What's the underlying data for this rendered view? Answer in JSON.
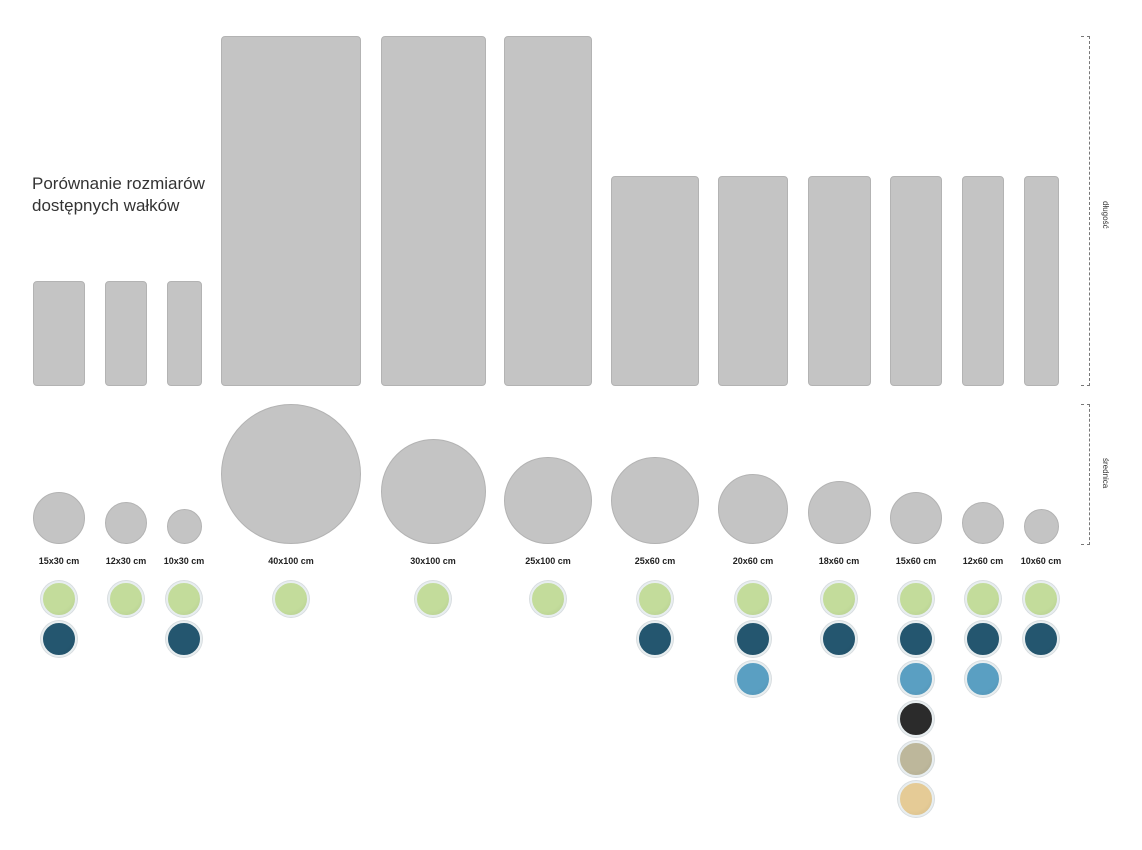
{
  "title": {
    "line1": "Porównanie rozmiarów",
    "line2": "dostępnych wałków"
  },
  "axis_labels": {
    "length": "długość",
    "diameter": "średnica"
  },
  "colors": {
    "shape_fill": "#c4c4c4",
    "swatch_map": {
      "green": "#c3dc9b",
      "navy": "#24566f",
      "blue": "#5a9fc2",
      "black": "#2b2b2b",
      "taupe": "#bdb79b",
      "sand": "#e5cb96"
    }
  },
  "rollers": [
    {
      "label": "15x30 cm",
      "diameter_cm": 15,
      "length_cm": 30,
      "swatches": [
        "green",
        "navy"
      ]
    },
    {
      "label": "12x30 cm",
      "diameter_cm": 12,
      "length_cm": 30,
      "swatches": [
        "green"
      ]
    },
    {
      "label": "10x30 cm",
      "diameter_cm": 10,
      "length_cm": 30,
      "swatches": [
        "green",
        "navy"
      ]
    },
    {
      "label": "40x100 cm",
      "diameter_cm": 40,
      "length_cm": 100,
      "swatches": [
        "green"
      ]
    },
    {
      "label": "30x100 cm",
      "diameter_cm": 30,
      "length_cm": 100,
      "swatches": [
        "green"
      ]
    },
    {
      "label": "25x100 cm",
      "diameter_cm": 25,
      "length_cm": 100,
      "swatches": [
        "green"
      ]
    },
    {
      "label": "25x60 cm",
      "diameter_cm": 25,
      "length_cm": 60,
      "swatches": [
        "green",
        "navy"
      ]
    },
    {
      "label": "20x60 cm",
      "diameter_cm": 20,
      "length_cm": 60,
      "swatches": [
        "green",
        "navy",
        "blue"
      ]
    },
    {
      "label": "18x60 cm",
      "diameter_cm": 18,
      "length_cm": 60,
      "swatches": [
        "green",
        "navy"
      ]
    },
    {
      "label": "15x60 cm",
      "diameter_cm": 15,
      "length_cm": 60,
      "swatches": [
        "green",
        "navy",
        "blue",
        "black",
        "taupe",
        "sand"
      ]
    },
    {
      "label": "12x60 cm",
      "diameter_cm": 12,
      "length_cm": 60,
      "swatches": [
        "green",
        "navy",
        "blue"
      ]
    },
    {
      "label": "10x60 cm",
      "diameter_cm": 10,
      "length_cm": 60,
      "swatches": [
        "green",
        "navy"
      ]
    }
  ]
}
